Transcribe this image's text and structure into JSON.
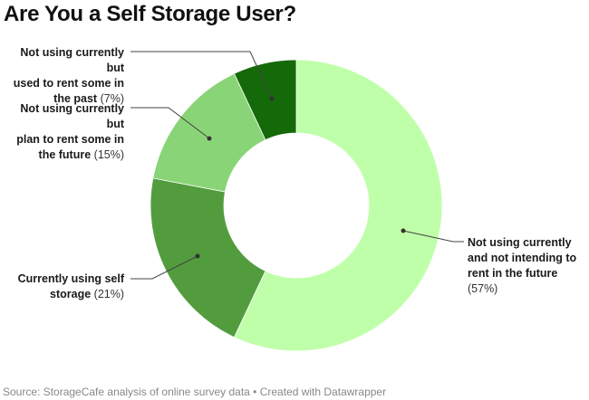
{
  "title": "Are You a Self Storage User?",
  "source": "Source: StorageCafe analysis of online survey data • Created with Datawrapper",
  "labels": [
    {
      "text": "Not using currently and not intending to rent in the future",
      "lines": [
        "Not using currently",
        "and not intending to",
        "rent in the future"
      ],
      "pct": "(57%)"
    },
    {
      "text": "Currently using self storage",
      "lines": [
        "Currently using self",
        "storage"
      ],
      "pct": "(21%)"
    },
    {
      "text": "Not using currently but plan to rent some in the future",
      "lines": [
        "Not using currently but",
        "plan to rent some in",
        "the future"
      ],
      "pct": "(15%)"
    },
    {
      "text": "Not using currently but used to rent some in the past",
      "lines": [
        "Not using currently but",
        "used to rent some in",
        "the past"
      ],
      "pct": "(7%)"
    }
  ],
  "chart_data": {
    "type": "pie",
    "subtype": "donut",
    "title": "Are You a Self Storage User?",
    "categories": [
      "Not using currently and not intending to rent in the future",
      "Currently using self storage",
      "Not using currently but plan to rent some in the future",
      "Not using currently but used to rent some in the past"
    ],
    "values": [
      57,
      21,
      15,
      7
    ],
    "unit": "%",
    "colors": [
      "#c0ffaa",
      "#529c3e",
      "#89d476",
      "#146908"
    ],
    "start_angle": "12 o'clock, clockwise",
    "legend": "direct labels with leader lines"
  }
}
